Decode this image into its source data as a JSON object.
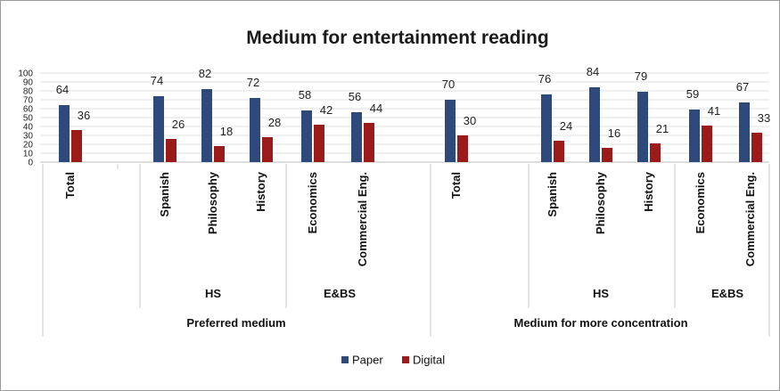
{
  "chart_data": {
    "type": "bar",
    "title": "Medium for entertainment reading",
    "ylim": [
      0,
      100
    ],
    "yticks": [
      0,
      10,
      20,
      30,
      40,
      50,
      60,
      70,
      80,
      90,
      100
    ],
    "categories": [
      "Total",
      "Spanish",
      "Philosophy",
      "History",
      "Economics",
      "Commercial Eng.",
      "Total",
      "Spanish",
      "Philosophy",
      "History",
      "Economics",
      "Commercial Eng."
    ],
    "subgroups": [
      {
        "label": "HS",
        "from": 1,
        "to": 3
      },
      {
        "label": "E&BS",
        "from": 4,
        "to": 5
      },
      {
        "label": "HS",
        "from": 7,
        "to": 9
      },
      {
        "label": "E&BS",
        "from": 10,
        "to": 11
      }
    ],
    "groups": [
      {
        "label": "Preferred medium",
        "from": 0,
        "to": 5
      },
      {
        "label": "Medium for more concentration",
        "from": 6,
        "to": 11
      }
    ],
    "series": [
      {
        "name": "Paper",
        "color": "#2e4a7a",
        "values": [
          64,
          74,
          82,
          72,
          58,
          56,
          70,
          76,
          84,
          79,
          59,
          67
        ]
      },
      {
        "name": "Digital",
        "color": "#9b1b1b",
        "values": [
          36,
          26,
          18,
          28,
          42,
          44,
          30,
          24,
          16,
          21,
          41,
          33
        ]
      }
    ],
    "legend": "bottom"
  }
}
